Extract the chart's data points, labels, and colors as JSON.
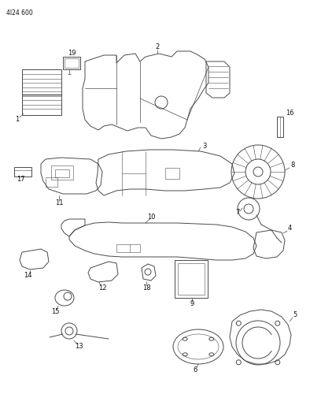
{
  "title": "4l24 600",
  "bg_color": "#ffffff",
  "line_color": "#4a4a4a",
  "label_color": "#111111",
  "figsize": [
    4.08,
    5.33
  ],
  "dpi": 100,
  "lw": 0.7,
  "fs_label": 6.0,
  "fs_header": 5.5
}
